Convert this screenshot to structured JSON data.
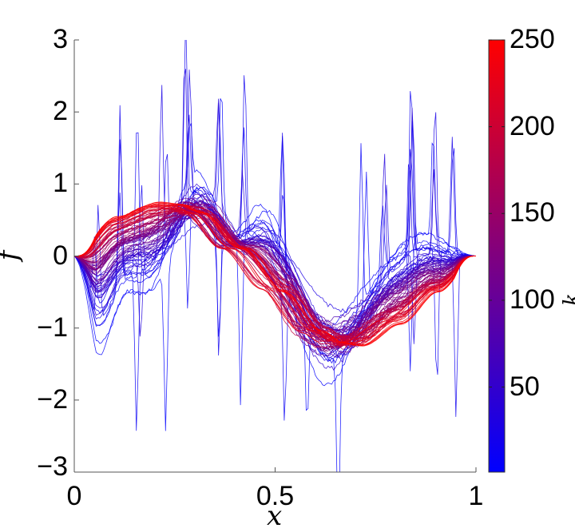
{
  "chart_data": {
    "type": "line",
    "title": "",
    "xlabel": "x",
    "ylabel": "f",
    "colorbar_label": "k",
    "xlim": [
      0,
      1
    ],
    "ylim": [
      -3,
      3
    ],
    "grid": false,
    "legend": "none (colorbar on right)",
    "x_ticks": [
      "0",
      "0.5",
      "1"
    ],
    "y_ticks": [
      "3",
      "2",
      "1",
      "0",
      "−1",
      "−2",
      "−3"
    ],
    "colorbar": {
      "range": [
        1,
        250
      ],
      "ticks": [
        "250",
        "200",
        "150",
        "100",
        "50"
      ],
      "colormap": [
        "#0000ff",
        "#ff0000"
      ]
    },
    "num_curves": 250,
    "description": "Family of iterate curves f(x) colored by iteration index (blue = early, red = late). Early curves are noisy with spikes; late curves converge to a smooth shape.",
    "converged_curve": {
      "x": [
        0,
        0.1,
        0.2,
        0.25,
        0.3,
        0.4,
        0.5,
        0.6,
        0.65,
        0.7,
        0.8,
        0.9,
        1.0
      ],
      "y": [
        0,
        0.55,
        0.75,
        0.72,
        0.6,
        0.1,
        -0.5,
        -1.05,
        -1.2,
        -1.25,
        -0.95,
        -0.5,
        0
      ]
    },
    "early_curve_features": {
      "min_value_near_x": [
        0.63,
        -1.7
      ],
      "early_bump_peaks": [
        [
          0.3,
          1.2
        ],
        [
          0.47,
          0.8
        ],
        [
          0.85,
          0.3
        ]
      ],
      "spike_extremes": [
        [
          0.11,
          2.2
        ],
        [
          0.66,
          2.1
        ],
        [
          0.63,
          -2.65
        ]
      ]
    }
  },
  "axes": {
    "x_ticks": [
      {
        "label": "0",
        "value": 0
      },
      {
        "label": "0.5",
        "value": 0.5
      },
      {
        "label": "1",
        "value": 1
      }
    ],
    "y_ticks": [
      {
        "label": "3",
        "value": 3
      },
      {
        "label": "2",
        "value": 2
      },
      {
        "label": "1",
        "value": 1
      },
      {
        "label": "0",
        "value": 0
      },
      {
        "label": "−1",
        "value": -1
      },
      {
        "label": "−2",
        "value": -2
      },
      {
        "label": "−3",
        "value": -3
      }
    ],
    "xlabel": "x",
    "ylabel": "f"
  },
  "colorbar": {
    "ticks": [
      {
        "label": "250",
        "value": 250
      },
      {
        "label": "200",
        "value": 200
      },
      {
        "label": "150",
        "value": 150
      },
      {
        "label": "100",
        "value": 100
      },
      {
        "label": "50",
        "value": 50
      }
    ],
    "min": 1,
    "max": 250
  }
}
